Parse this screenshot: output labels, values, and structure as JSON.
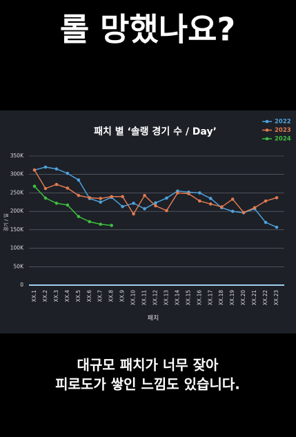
{
  "header": {
    "title": "롤 망했나요?"
  },
  "caption": {
    "lines": [
      "대규모 패치가 너무 잦아",
      "피로도가 쌓인 느낌도 있습니다."
    ]
  },
  "chart_data": {
    "type": "line",
    "title": "패치 별 ‘솔랭 경기 수 / Day’",
    "x_label": "패치",
    "y_label": "경기 / 일",
    "categories": [
      "XX.1",
      "XX.2",
      "XX.3",
      "XX.4",
      "XX.5",
      "XX.6",
      "XX.7",
      "XX.8",
      "XX.9",
      "XX.10",
      "XX.11",
      "XX.12",
      "XX.13",
      "XX.14",
      "XX.15",
      "XX.16",
      "XX.17",
      "XX.18",
      "XX.19",
      "XX.20",
      "XX.21",
      "XX.22",
      "XX.23"
    ],
    "series": [
      {
        "name": "2022",
        "color": "#4fa3dc",
        "values": [
          312000,
          320000,
          315000,
          303000,
          285000,
          235000,
          225000,
          238000,
          213000,
          222000,
          207000,
          223000,
          236000,
          255000,
          252000,
          250000,
          235000,
          210000,
          200000,
          196000,
          207000,
          170000,
          157000
        ]
      },
      {
        "name": "2023",
        "color": "#e07a50",
        "values": [
          312000,
          262000,
          273000,
          263000,
          243000,
          237000,
          235000,
          240000,
          240000,
          193000,
          243000,
          215000,
          202000,
          250000,
          248000,
          228000,
          220000,
          212000,
          233000,
          197000,
          210000,
          228000,
          237000
        ]
      },
      {
        "name": "2024",
        "color": "#3fbf3f",
        "values": [
          268000,
          236000,
          222000,
          217000,
          186000,
          172000,
          165000,
          162000,
          null,
          null,
          null,
          null,
          null,
          null,
          null,
          null,
          null,
          null,
          null,
          null,
          null,
          null,
          null
        ]
      }
    ],
    "ylim": [
      0,
      350000
    ],
    "yticks": [
      0,
      {
        "value": 50000,
        "label": "50K"
      },
      {
        "value": 100000,
        "label": "100K"
      },
      {
        "value": 150000,
        "label": "150K"
      },
      {
        "value": 200000,
        "label": "200K"
      },
      {
        "value": 250000,
        "label": "250K"
      },
      {
        "value": 300000,
        "label": "300K"
      },
      {
        "value": 350000,
        "label": "350K"
      }
    ],
    "grid": true,
    "legend": "top-right"
  }
}
